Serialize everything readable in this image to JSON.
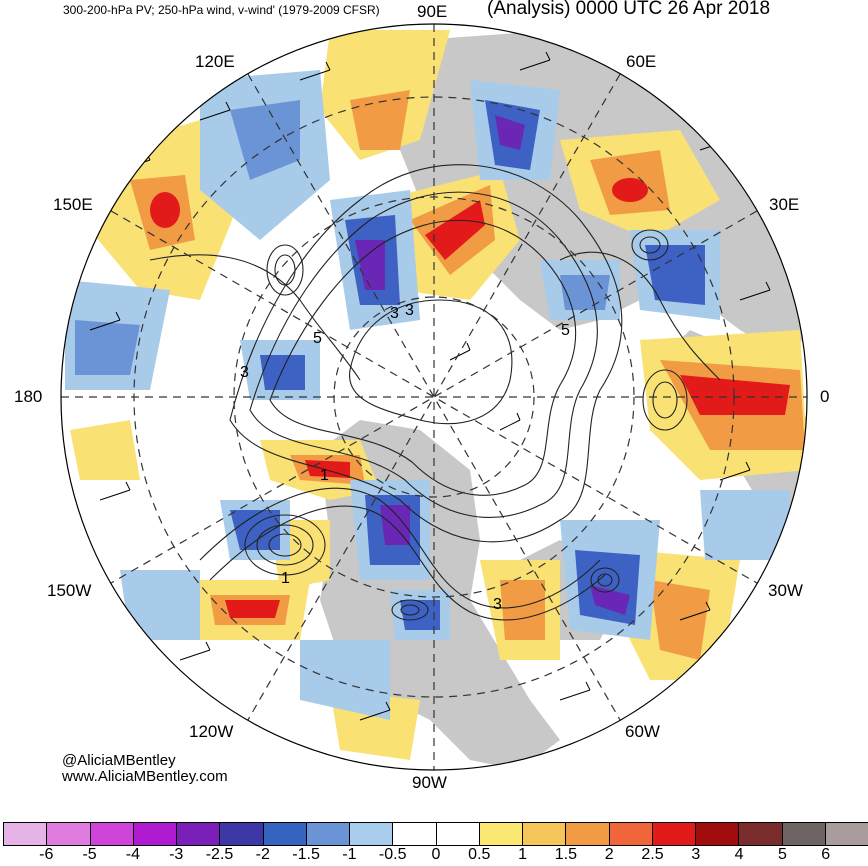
{
  "header": {
    "left": "300-200-hPa PV; 250-hPa wind, v-wind' (1979-2009 CFSR)",
    "right": "(Analysis) 0000 UTC 26 Apr 2018"
  },
  "longitude_labels": {
    "e90": "90E",
    "e60": "60E",
    "e120": "120E",
    "e150": "150E",
    "e30": "30E",
    "zero": "0",
    "e180": "180",
    "w150": "150W",
    "w30": "30W",
    "w120": "120W",
    "w60": "60W",
    "w90": "90W"
  },
  "contour_labels": [
    "3",
    "3",
    "5",
    "5",
    "3",
    "1",
    "3",
    "1"
  ],
  "credits": {
    "handle": "@AliciaMBentley",
    "website": "www.AliciaMBentley.com"
  },
  "colorbar": {
    "colors": [
      "#e6b3e6",
      "#e07be0",
      "#cf45d9",
      "#b01ad1",
      "#7a20b8",
      "#3d37a8",
      "#3565c0",
      "#6a94d6",
      "#a9cdec",
      "#ffffff",
      "#ffffff",
      "#fbe873",
      "#f5c55a",
      "#f29b45",
      "#f0653a",
      "#e21a1a",
      "#a00c0c",
      "#7a2b2b",
      "#6f6464",
      "#a89c9c"
    ],
    "ticks": [
      "-6",
      "-5",
      "-4",
      "-3",
      "-2.5",
      "-2",
      "-1.5",
      "-1",
      "-0.5",
      "0",
      "0.5",
      "1",
      "1.5",
      "2",
      "2.5",
      "3",
      "4",
      "5",
      "6"
    ]
  },
  "palette": {
    "land": "#c8c8c8",
    "negative_strong": "#6a27b5",
    "negative_mid": "#3d62c4",
    "negative_light": "#a8cbea",
    "positive_light": "#f9e174",
    "positive_mid": "#f29b45",
    "positive_strong": "#e21a1a"
  }
}
